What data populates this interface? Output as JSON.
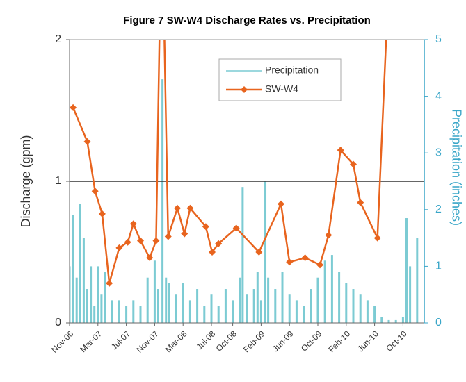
{
  "chart_data": {
    "type": "line",
    "title": "Figure 7 SW-W4 Discharge Rates vs. Precipitation",
    "ylabel": "Discharge (gpm)",
    "y2label": "Precipitation (inches)",
    "xlim": [
      0,
      50
    ],
    "xticks": [
      {
        "value": 0,
        "label": "Nov-06"
      },
      {
        "value": 4,
        "label": "Mar-07"
      },
      {
        "value": 8,
        "label": "Jul-07"
      },
      {
        "value": 12,
        "label": "Nov-07"
      },
      {
        "value": 16,
        "label": "Mar-08"
      },
      {
        "value": 20,
        "label": "Jul-08"
      },
      {
        "value": 23,
        "label": "Oct-08"
      },
      {
        "value": 27,
        "label": "Feb-09"
      },
      {
        "value": 31,
        "label": "Jun-09"
      },
      {
        "value": 35,
        "label": "Oct-09"
      },
      {
        "value": 39,
        "label": "Feb-10"
      },
      {
        "value": 43,
        "label": "Jun-10"
      },
      {
        "value": 47,
        "label": "Oct-10"
      }
    ],
    "ylim": [
      0,
      2
    ],
    "yticks": [
      0,
      1,
      2
    ],
    "y2lim": [
      0,
      5
    ],
    "y2ticks": [
      0,
      1,
      2,
      3,
      4,
      5
    ],
    "reference_line": 1,
    "legend": "top-center",
    "series": [
      {
        "name": "Precipitation",
        "type": "bar",
        "axis": "y2",
        "color": "#7ccbd3",
        "x": [
          0,
          0.5,
          1,
          1.5,
          2,
          2.5,
          3,
          3.5,
          4,
          4.5,
          5,
          6,
          7,
          8,
          9,
          10,
          11,
          12,
          12.5,
          13.1,
          13.6,
          14,
          15,
          16,
          17,
          18,
          19,
          20,
          21,
          22,
          23,
          24,
          24.4,
          25,
          26,
          26.5,
          27,
          27.6,
          28,
          29,
          30,
          31,
          32,
          33,
          34,
          35,
          36,
          37,
          38,
          39,
          40,
          41,
          42,
          43,
          44,
          45,
          46,
          47,
          47.5,
          48,
          49
        ],
        "values": [
          1.0,
          1.9,
          0.8,
          2.1,
          1.5,
          0.6,
          1.0,
          0.3,
          1.0,
          0.5,
          0.9,
          0.4,
          0.4,
          0.3,
          0.4,
          0.3,
          0.8,
          1.1,
          0.6,
          4.3,
          0.8,
          0.7,
          0.5,
          0.7,
          0.4,
          0.6,
          0.3,
          0.5,
          0.3,
          0.6,
          0.4,
          0.8,
          2.4,
          0.5,
          0.6,
          0.9,
          0.4,
          2.5,
          0.8,
          0.6,
          0.9,
          0.5,
          0.4,
          0.3,
          0.6,
          0.8,
          1.1,
          1.2,
          0.9,
          0.7,
          0.6,
          0.5,
          0.4,
          0.3,
          0.1,
          0.05,
          0.05,
          0.1,
          1.85,
          1.0,
          1.5
        ]
      },
      {
        "name": "SW-W4",
        "type": "line",
        "color": "#e8641e",
        "x": [
          0.5,
          2.5,
          3.6,
          4.6,
          5.6,
          7,
          8.2,
          9,
          10,
          11.3,
          12.2,
          13,
          13.9,
          15.2,
          16.2,
          17,
          19.2,
          20.1,
          21,
          23.5,
          26.7,
          29.8,
          31,
          33.2,
          35.3,
          36.5,
          38.2,
          40,
          41,
          43.4,
          45.5
        ],
        "values": [
          1.52,
          1.28,
          0.93,
          0.77,
          0.28,
          0.53,
          0.57,
          0.7,
          0.58,
          0.46,
          0.58,
          3,
          0.61,
          0.81,
          0.63,
          0.81,
          0.68,
          0.5,
          0.56,
          0.67,
          0.5,
          0.84,
          0.43,
          0.46,
          0.41,
          0.62,
          1.22,
          1.12,
          0.85,
          0.6,
          3
        ]
      }
    ]
  }
}
